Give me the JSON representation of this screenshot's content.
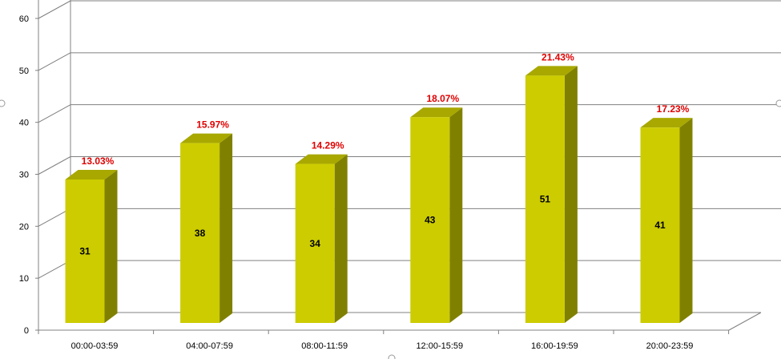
{
  "chart_data": {
    "type": "bar",
    "style": "3d-column",
    "categories": [
      "00:00-03:59",
      "04:00-07:59",
      "08:00-11:59",
      "12:00-15:59",
      "16:00-19:59",
      "20:00-23:59"
    ],
    "values": [
      31,
      38,
      34,
      43,
      51,
      41
    ],
    "percent_labels": [
      "13.03%",
      "15.97%",
      "14.29%",
      "18.07%",
      "21.43%",
      "17.23%"
    ],
    "yticks": [
      "0",
      "10",
      "20",
      "30",
      "40",
      "50",
      "60"
    ],
    "ylim": [
      0,
      60
    ],
    "grid": true,
    "legend": "none",
    "title": "",
    "xlabel": "",
    "ylabel": "",
    "colors": {
      "bar_front": "#cccc00",
      "bar_side": "#808000",
      "bar_top": "#a8a800",
      "gridline": "#808080",
      "percent_label": "#e00000",
      "value_label": "#000000"
    }
  }
}
